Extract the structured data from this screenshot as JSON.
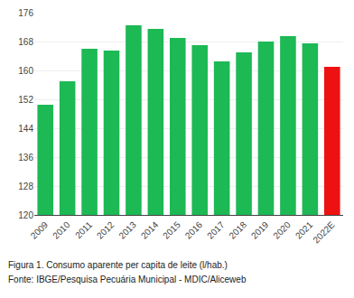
{
  "chart_data": {
    "type": "bar",
    "categories": [
      "2009",
      "2010",
      "2011",
      "2012",
      "2013",
      "2014",
      "2015",
      "2016",
      "2017",
      "2018",
      "2019",
      "2020",
      "2021",
      "2022E"
    ],
    "values": [
      150.5,
      157.0,
      166.0,
      165.5,
      172.5,
      171.5,
      169.0,
      167.0,
      162.5,
      165.0,
      168.0,
      169.5,
      167.5,
      161.0
    ],
    "colors": [
      "#1db954",
      "#1db954",
      "#1db954",
      "#1db954",
      "#1db954",
      "#1db954",
      "#1db954",
      "#1db954",
      "#1db954",
      "#1db954",
      "#1db954",
      "#1db954",
      "#1db954",
      "#ee1111"
    ],
    "ylim": [
      120,
      176
    ],
    "yticks": [
      120,
      128,
      136,
      144,
      152,
      160,
      168,
      176
    ],
    "grid": true,
    "annotations": [
      "Figura 1. Consumo aparente per capita de leite (l/hab.)",
      "Fonte: IBGE/Pesquisa Pecuária Municipal - MDIC/Aliceweb"
    ]
  }
}
